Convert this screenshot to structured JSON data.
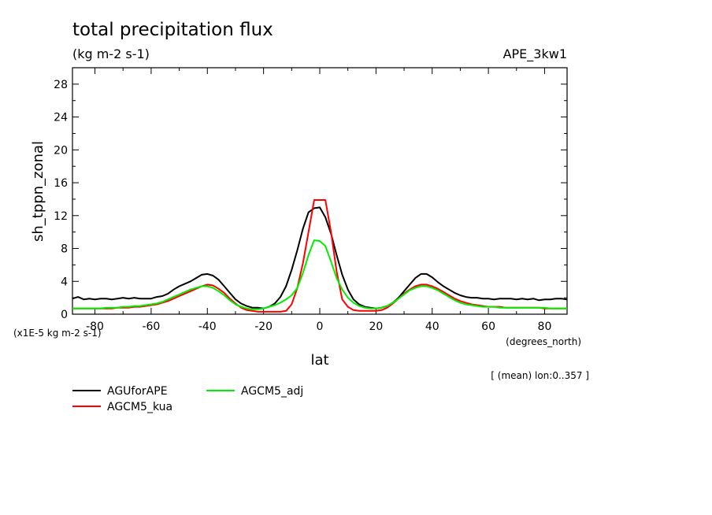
{
  "chart_data": {
    "type": "line",
    "title": "total precipitation flux",
    "subtitle": "(kg m-2 s-1)",
    "run_label": "APE_3kw1",
    "ylabel": "sh_tppn_zonal",
    "yscale_note": "(x1E-5 kg m-2 s-1)",
    "xlabel": "lat",
    "xunits": "(degrees_north)",
    "footnote": "[ (mean) lon:0..357 ]",
    "xlim": [
      -88,
      88
    ],
    "ylim": [
      0,
      30
    ],
    "xticks": [
      -80,
      -60,
      -40,
      -20,
      0,
      20,
      40,
      60,
      80
    ],
    "xtick_labels": [
      "-80",
      "-60",
      "-40",
      "-20",
      "0",
      "20",
      "40",
      "60",
      "80"
    ],
    "yticks": [
      0,
      4,
      8,
      12,
      16,
      20,
      24,
      28
    ],
    "ytick_labels": [
      "0",
      "4",
      "8",
      "12",
      "16",
      "20",
      "24",
      "28"
    ],
    "grid": false,
    "legend_position": "bottom-left",
    "series": [
      {
        "name": "AGUforAPE",
        "color": "#000000",
        "x": [
          -88,
          -86,
          -84,
          -82,
          -80,
          -78,
          -76,
          -74,
          -72,
          -70,
          -68,
          -66,
          -64,
          -62,
          -60,
          -58,
          -56,
          -54,
          -52,
          -50,
          -48,
          -46,
          -44,
          -42,
          -40,
          -38,
          -36,
          -34,
          -32,
          -30,
          -28,
          -26,
          -24,
          -22,
          -20,
          -18,
          -16,
          -14,
          -12,
          -10,
          -8,
          -6,
          -4,
          -2,
          0,
          2,
          4,
          6,
          8,
          10,
          12,
          14,
          16,
          18,
          20,
          22,
          24,
          26,
          28,
          30,
          32,
          34,
          36,
          38,
          40,
          42,
          44,
          46,
          48,
          50,
          52,
          54,
          56,
          58,
          60,
          62,
          64,
          66,
          68,
          70,
          72,
          74,
          76,
          78,
          80,
          82,
          84,
          86,
          88
        ],
        "y": [
          1.9,
          2.1,
          1.8,
          1.9,
          1.8,
          1.9,
          1.9,
          1.8,
          1.9,
          2.0,
          1.9,
          2.0,
          1.9,
          1.9,
          1.9,
          2.1,
          2.2,
          2.5,
          3.0,
          3.4,
          3.7,
          4.0,
          4.4,
          4.8,
          4.9,
          4.7,
          4.2,
          3.4,
          2.6,
          1.8,
          1.3,
          1.0,
          0.8,
          0.8,
          0.7,
          0.9,
          1.3,
          2.1,
          3.4,
          5.4,
          7.8,
          10.4,
          12.4,
          12.9,
          13.0,
          11.8,
          9.8,
          7.2,
          4.8,
          3.0,
          1.8,
          1.2,
          0.9,
          0.8,
          0.7,
          0.8,
          1.0,
          1.4,
          2.0,
          2.8,
          3.6,
          4.4,
          4.9,
          4.9,
          4.5,
          3.9,
          3.4,
          3.0,
          2.6,
          2.3,
          2.1,
          2.0,
          2.0,
          1.9,
          1.9,
          1.8,
          1.9,
          1.9,
          1.9,
          1.8,
          1.9,
          1.8,
          1.9,
          1.7,
          1.8,
          1.8,
          1.9,
          1.9,
          1.8
        ]
      },
      {
        "name": "AGCM5_kua",
        "color": "#ff0000",
        "x": [
          -88,
          -86,
          -84,
          -82,
          -80,
          -78,
          -76,
          -74,
          -72,
          -70,
          -68,
          -66,
          -64,
          -62,
          -60,
          -58,
          -56,
          -54,
          -52,
          -50,
          -48,
          -46,
          -44,
          -42,
          -40,
          -38,
          -36,
          -34,
          -32,
          -30,
          -28,
          -26,
          -24,
          -22,
          -20,
          -18,
          -16,
          -14,
          -12,
          -10,
          -8,
          -6,
          -4,
          -2,
          0,
          2,
          4,
          6,
          8,
          10,
          12,
          14,
          16,
          18,
          20,
          22,
          24,
          26,
          28,
          30,
          32,
          34,
          36,
          38,
          40,
          42,
          44,
          46,
          48,
          50,
          52,
          54,
          56,
          58,
          60,
          62,
          64,
          66,
          68,
          70,
          72,
          74,
          76,
          78,
          80,
          82,
          84,
          86,
          88
        ],
        "y": [
          0.7,
          0.7,
          0.7,
          0.7,
          0.7,
          0.7,
          0.7,
          0.7,
          0.8,
          0.8,
          0.8,
          0.9,
          0.9,
          1.0,
          1.1,
          1.2,
          1.4,
          1.6,
          1.9,
          2.2,
          2.5,
          2.8,
          3.1,
          3.4,
          3.6,
          3.5,
          3.1,
          2.6,
          1.9,
          1.3,
          0.8,
          0.5,
          0.4,
          0.3,
          0.3,
          0.3,
          0.3,
          0.3,
          0.4,
          1.2,
          3.2,
          6.2,
          10.0,
          13.9,
          13.9,
          13.9,
          10.0,
          5.2,
          1.8,
          0.9,
          0.5,
          0.4,
          0.4,
          0.4,
          0.4,
          0.5,
          0.8,
          1.3,
          1.9,
          2.5,
          3.0,
          3.4,
          3.6,
          3.6,
          3.4,
          3.1,
          2.7,
          2.3,
          1.9,
          1.6,
          1.4,
          1.2,
          1.1,
          1.0,
          0.9,
          0.9,
          0.9,
          0.8,
          0.8,
          0.8,
          0.8,
          0.8,
          0.8,
          0.8,
          0.7,
          0.7,
          0.7,
          0.7,
          0.7
        ]
      },
      {
        "name": "AGCM5_adj",
        "color": "#00ee00",
        "x": [
          -88,
          -86,
          -84,
          -82,
          -80,
          -78,
          -76,
          -74,
          -72,
          -70,
          -68,
          -66,
          -64,
          -62,
          -60,
          -58,
          -56,
          -54,
          -52,
          -50,
          -48,
          -46,
          -44,
          -42,
          -40,
          -38,
          -36,
          -34,
          -32,
          -30,
          -28,
          -26,
          -24,
          -22,
          -20,
          -18,
          -16,
          -14,
          -12,
          -10,
          -8,
          -6,
          -4,
          -2,
          0,
          2,
          4,
          6,
          8,
          10,
          12,
          14,
          16,
          18,
          20,
          22,
          24,
          26,
          28,
          30,
          32,
          34,
          36,
          38,
          40,
          42,
          44,
          46,
          48,
          50,
          52,
          54,
          56,
          58,
          60,
          62,
          64,
          66,
          68,
          70,
          72,
          74,
          76,
          78,
          80,
          82,
          84,
          86,
          88
        ],
        "y": [
          0.7,
          0.7,
          0.7,
          0.7,
          0.7,
          0.7,
          0.8,
          0.8,
          0.8,
          0.9,
          0.9,
          1.0,
          1.0,
          1.1,
          1.2,
          1.3,
          1.5,
          1.8,
          2.1,
          2.4,
          2.7,
          3.0,
          3.2,
          3.4,
          3.4,
          3.2,
          2.8,
          2.3,
          1.7,
          1.2,
          0.9,
          0.7,
          0.6,
          0.6,
          0.7,
          0.9,
          1.1,
          1.4,
          1.8,
          2.3,
          3.2,
          5.0,
          7.2,
          9.0,
          8.9,
          8.3,
          6.4,
          4.4,
          3.0,
          2.0,
          1.4,
          1.0,
          0.8,
          0.7,
          0.7,
          0.8,
          1.0,
          1.4,
          1.9,
          2.4,
          2.9,
          3.2,
          3.4,
          3.4,
          3.2,
          2.9,
          2.5,
          2.1,
          1.7,
          1.4,
          1.2,
          1.1,
          1.0,
          0.9,
          0.9,
          0.9,
          0.8,
          0.8,
          0.8,
          0.8,
          0.8,
          0.8,
          0.8,
          0.8,
          0.8,
          0.7,
          0.7,
          0.7,
          0.7
        ]
      }
    ]
  }
}
